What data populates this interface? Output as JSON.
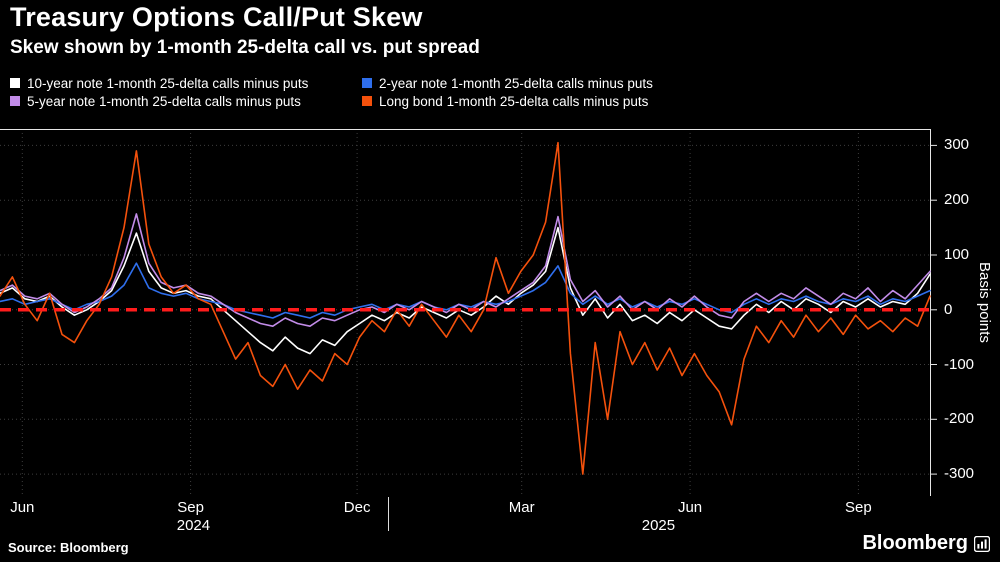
{
  "header": {
    "title": "Treasury Options Call/Put Skew",
    "subtitle": "Skew shown by 1-month 25-delta call vs. put spread"
  },
  "footer": {
    "source": "Source: Bloomberg",
    "logo": "Bloomberg"
  },
  "chart_data": {
    "type": "line",
    "title": "Treasury Options Call/Put Skew",
    "subtitle": "Skew shown by 1-month 25-delta call vs. put spread",
    "ylabel": "Basis points",
    "ylim": [
      -340,
      330
    ],
    "y_ticks": [
      300,
      200,
      100,
      0,
      -100,
      -200,
      -300
    ],
    "grid": true,
    "legend_position": "top",
    "zero_line": {
      "value": 0,
      "color": "#ff1c1c",
      "style": "dashed"
    },
    "x_ticks": [
      {
        "pos": 0.024,
        "label": "Jun"
      },
      {
        "pos": 0.205,
        "label": "Sep"
      },
      {
        "pos": 0.384,
        "label": "Dec"
      },
      {
        "pos": 0.561,
        "label": "Mar"
      },
      {
        "pos": 0.742,
        "label": "Jun"
      },
      {
        "pos": 0.923,
        "label": "Sep"
      }
    ],
    "year_labels": [
      {
        "pos": 0.208,
        "label": "2024"
      },
      {
        "pos": 0.708,
        "label": "2025"
      }
    ],
    "year_divider_pos": 0.417,
    "series": [
      {
        "name": "10-year note 1-month 25-delta calls minus puts",
        "color": "#ffffff",
        "values": [
          30,
          40,
          20,
          15,
          25,
          5,
          -10,
          0,
          15,
          35,
          80,
          140,
          70,
          40,
          30,
          35,
          25,
          20,
          0,
          -20,
          -40,
          -60,
          -75,
          -50,
          -70,
          -80,
          -55,
          -65,
          -40,
          -25,
          -10,
          -20,
          -5,
          -15,
          5,
          -5,
          -15,
          0,
          -10,
          5,
          25,
          10,
          30,
          45,
          70,
          150,
          40,
          -10,
          20,
          -15,
          10,
          -20,
          -10,
          -25,
          -5,
          -20,
          0,
          -15,
          -30,
          -35,
          -10,
          10,
          -5,
          15,
          0,
          20,
          10,
          -5,
          15,
          5,
          20,
          5,
          15,
          10,
          30,
          65
        ]
      },
      {
        "name": "2-year note 1-month 25-delta calls minus puts",
        "color": "#2f6fed",
        "values": [
          15,
          20,
          10,
          15,
          20,
          10,
          0,
          10,
          15,
          25,
          45,
          85,
          40,
          30,
          25,
          30,
          20,
          15,
          10,
          0,
          -5,
          -10,
          -15,
          -5,
          -10,
          -15,
          -5,
          -10,
          0,
          5,
          10,
          0,
          10,
          5,
          15,
          5,
          0,
          10,
          5,
          15,
          10,
          15,
          25,
          35,
          50,
          80,
          30,
          10,
          25,
          10,
          20,
          5,
          15,
          5,
          15,
          10,
          20,
          10,
          0,
          -5,
          10,
          20,
          10,
          20,
          15,
          25,
          15,
          10,
          20,
          15,
          25,
          10,
          20,
          15,
          25,
          35
        ]
      },
      {
        "name": "5-year note 1-month 25-delta calls minus puts",
        "color": "#c28ce8",
        "values": [
          35,
          45,
          25,
          20,
          30,
          10,
          -5,
          5,
          20,
          40,
          95,
          175,
          85,
          50,
          40,
          45,
          30,
          25,
          10,
          -5,
          -15,
          -25,
          -30,
          -15,
          -25,
          -30,
          -15,
          -20,
          -10,
          0,
          5,
          -5,
          10,
          0,
          15,
          5,
          -5,
          10,
          0,
          15,
          5,
          20,
          35,
          50,
          80,
          170,
          55,
          15,
          35,
          5,
          25,
          0,
          15,
          0,
          20,
          5,
          25,
          5,
          -10,
          -15,
          15,
          30,
          15,
          30,
          20,
          40,
          25,
          10,
          30,
          20,
          40,
          15,
          35,
          20,
          45,
          70
        ]
      },
      {
        "name": "Long bond 1-month 25-delta calls minus puts",
        "color": "#f4510c",
        "values": [
          25,
          60,
          10,
          -20,
          30,
          -45,
          -60,
          -20,
          10,
          60,
          150,
          290,
          120,
          60,
          30,
          45,
          20,
          10,
          -40,
          -90,
          -60,
          -120,
          -140,
          -100,
          -145,
          -110,
          -130,
          -80,
          -100,
          -50,
          -20,
          -40,
          0,
          -30,
          10,
          -20,
          -50,
          -10,
          -40,
          0,
          95,
          30,
          70,
          100,
          160,
          305,
          -80,
          -300,
          -60,
          -200,
          -40,
          -100,
          -60,
          -110,
          -70,
          -120,
          -80,
          -120,
          -150,
          -210,
          -90,
          -30,
          -60,
          -20,
          -50,
          -10,
          -40,
          -15,
          -45,
          -10,
          -35,
          -20,
          -40,
          -15,
          -30,
          25
        ]
      }
    ]
  }
}
